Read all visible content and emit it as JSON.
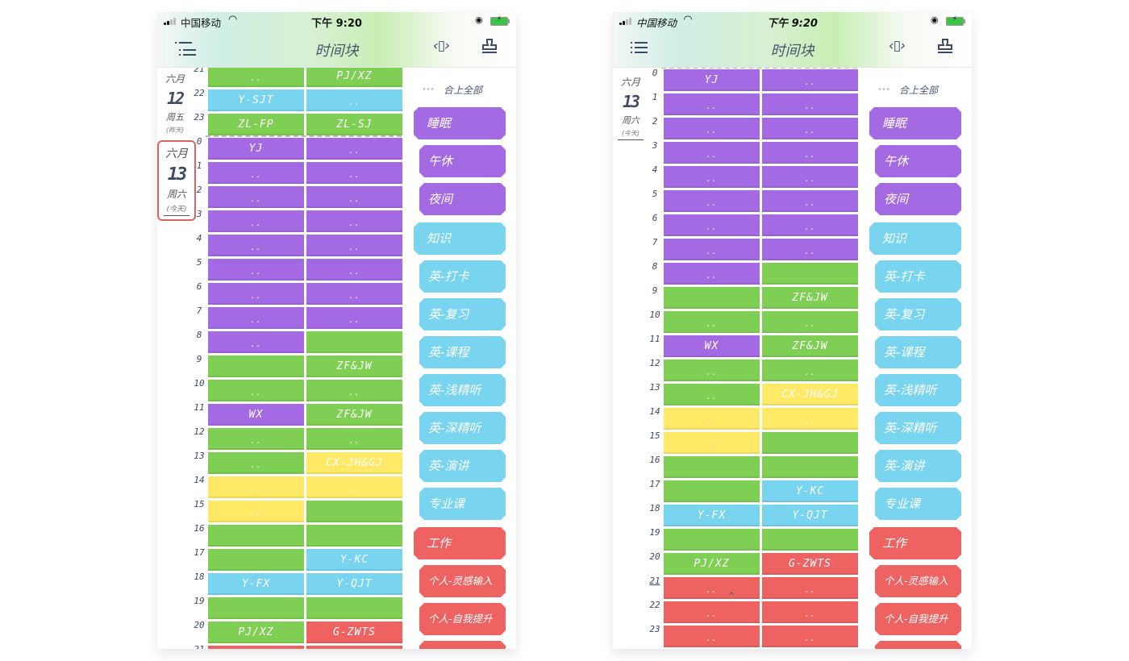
{
  "status_bar": {
    "carrier": "中国移动",
    "time": "下午 9:20",
    "wifi_icon": "wifi-icon",
    "battery_icon": "battery-charging-icon",
    "orientation_lock_icon": "orientation-lock-icon"
  },
  "nav": {
    "title": "时间块",
    "menu_icon": "list-menu-icon",
    "expand_icon": "expand-horizontal-icon",
    "stamp_icon": "stamp-icon"
  },
  "colors": {
    "purple": "#a36ae3",
    "green": "#80cf55",
    "blue": "#78d4ef",
    "yellow": "#ffe967",
    "red": "#ee6262",
    "highlight_border": "#e06262"
  },
  "side_panel": {
    "collapse_chevrons": "˅˅˅",
    "collapse_label": "合上全部",
    "categories": [
      {
        "label": "睡眠",
        "color": "purple",
        "level": "parent"
      },
      {
        "label": "午休",
        "color": "purple",
        "level": "child"
      },
      {
        "label": "夜间",
        "color": "purple",
        "level": "child"
      },
      {
        "label": "知识",
        "color": "blue",
        "level": "parent"
      },
      {
        "label": "英-打卡",
        "color": "blue",
        "level": "child"
      },
      {
        "label": "英-复习",
        "color": "blue",
        "level": "child"
      },
      {
        "label": "英-课程",
        "color": "blue",
        "level": "child"
      },
      {
        "label": "英-浅精听",
        "color": "blue",
        "level": "child"
      },
      {
        "label": "英-深精听",
        "color": "blue",
        "level": "child"
      },
      {
        "label": "英-演讲",
        "color": "blue",
        "level": "child"
      },
      {
        "label": "专业课",
        "color": "blue",
        "level": "child"
      },
      {
        "label": "工作",
        "color": "red",
        "level": "parent"
      },
      {
        "label": "个人-灵感输入",
        "color": "red",
        "level": "child"
      },
      {
        "label": "个人-自我提升",
        "color": "red",
        "level": "child"
      },
      {
        "label": "",
        "color": "red",
        "level": "child"
      }
    ]
  },
  "left_screen": {
    "yesterday": {
      "month": "六月",
      "day": "12",
      "weekday": "周五",
      "relative": "(昨天)"
    },
    "today": {
      "month": "六月",
      "day": "13",
      "weekday": "周六",
      "relative": "(今天)"
    },
    "prev_rows": [
      {
        "hour": "21",
        "cells": [
          {
            "text": "..",
            "color": "green"
          },
          {
            "text": "PJ/XZ",
            "color": "green"
          }
        ]
      },
      {
        "hour": "22",
        "cells": [
          {
            "text": "Y-SJT",
            "color": "blue"
          },
          {
            "text": "..",
            "color": "blue"
          }
        ]
      },
      {
        "hour": "23",
        "cells": [
          {
            "text": "ZL-FP",
            "color": "green"
          },
          {
            "text": "ZL-SJ",
            "color": "green"
          }
        ]
      }
    ],
    "rows": [
      {
        "hour": "0",
        "cells": [
          {
            "text": "YJ",
            "color": "purple"
          },
          {
            "text": "..",
            "color": "purple"
          }
        ]
      },
      {
        "hour": "1",
        "cells": [
          {
            "text": "..",
            "color": "purple"
          },
          {
            "text": "..",
            "color": "purple"
          }
        ]
      },
      {
        "hour": "2",
        "cells": [
          {
            "text": "..",
            "color": "purple"
          },
          {
            "text": "..",
            "color": "purple"
          }
        ]
      },
      {
        "hour": "3",
        "cells": [
          {
            "text": "..",
            "color": "purple"
          },
          {
            "text": "..",
            "color": "purple"
          }
        ]
      },
      {
        "hour": "4",
        "cells": [
          {
            "text": "..",
            "color": "purple"
          },
          {
            "text": "..",
            "color": "purple"
          }
        ]
      },
      {
        "hour": "5",
        "cells": [
          {
            "text": "..",
            "color": "purple"
          },
          {
            "text": "..",
            "color": "purple"
          }
        ]
      },
      {
        "hour": "6",
        "cells": [
          {
            "text": "..",
            "color": "purple"
          },
          {
            "text": "..",
            "color": "purple"
          }
        ]
      },
      {
        "hour": "7",
        "cells": [
          {
            "text": "..",
            "color": "purple"
          },
          {
            "text": "..",
            "color": "purple"
          }
        ]
      },
      {
        "hour": "8",
        "cells": [
          {
            "text": "..",
            "color": "purple"
          },
          {
            "text": "",
            "color": "green"
          }
        ]
      },
      {
        "hour": "9",
        "cells": [
          {
            "text": "",
            "color": "green"
          },
          {
            "text": "ZF&JW",
            "color": "green"
          }
        ]
      },
      {
        "hour": "10",
        "cells": [
          {
            "text": "..",
            "color": "green"
          },
          {
            "text": "..",
            "color": "green"
          }
        ]
      },
      {
        "hour": "11",
        "cells": [
          {
            "text": "WX",
            "color": "purple"
          },
          {
            "text": "ZF&JW",
            "color": "green"
          }
        ]
      },
      {
        "hour": "12",
        "cells": [
          {
            "text": "..",
            "color": "green"
          },
          {
            "text": "..",
            "color": "green"
          }
        ]
      },
      {
        "hour": "13",
        "cells": [
          {
            "text": "..",
            "color": "green"
          },
          {
            "text": "CX-JH&GJ",
            "color": "yellow"
          }
        ]
      },
      {
        "hour": "14",
        "cells": [
          {
            "text": "..",
            "color": "yellow"
          },
          {
            "text": "..",
            "color": "yellow"
          }
        ]
      },
      {
        "hour": "15",
        "cells": [
          {
            "text": "..",
            "color": "yellow"
          },
          {
            "text": "",
            "color": "green"
          }
        ]
      },
      {
        "hour": "16",
        "cells": [
          {
            "text": "",
            "color": "green"
          },
          {
            "text": "",
            "color": "green"
          }
        ]
      },
      {
        "hour": "17",
        "cells": [
          {
            "text": "",
            "color": "green"
          },
          {
            "text": "Y-KC",
            "color": "blue"
          }
        ]
      },
      {
        "hour": "18",
        "cells": [
          {
            "text": "Y-FX",
            "color": "blue"
          },
          {
            "text": "Y-QJT",
            "color": "blue"
          }
        ]
      },
      {
        "hour": "19",
        "cells": [
          {
            "text": "",
            "color": "green"
          },
          {
            "text": "",
            "color": "green"
          }
        ]
      },
      {
        "hour": "20",
        "cells": [
          {
            "text": "PJ/XZ",
            "color": "green"
          },
          {
            "text": "G-ZWTS",
            "color": "red"
          }
        ]
      },
      {
        "hour": "21",
        "cells": [
          {
            "text": "",
            "color": "red"
          },
          {
            "text": "",
            "color": "red"
          }
        ]
      }
    ]
  },
  "right_screen": {
    "today": {
      "month": "六月",
      "day": "13",
      "weekday": "周六",
      "relative": "(今天)"
    },
    "current_hour": "21",
    "rows": [
      {
        "hour": "0",
        "cells": [
          {
            "text": "YJ",
            "color": "purple"
          },
          {
            "text": "..",
            "color": "purple"
          }
        ]
      },
      {
        "hour": "1",
        "cells": [
          {
            "text": "..",
            "color": "purple"
          },
          {
            "text": "..",
            "color": "purple"
          }
        ]
      },
      {
        "hour": "2",
        "cells": [
          {
            "text": "..",
            "color": "purple"
          },
          {
            "text": "..",
            "color": "purple"
          }
        ]
      },
      {
        "hour": "3",
        "cells": [
          {
            "text": "..",
            "color": "purple"
          },
          {
            "text": "..",
            "color": "purple"
          }
        ]
      },
      {
        "hour": "4",
        "cells": [
          {
            "text": "..",
            "color": "purple"
          },
          {
            "text": "..",
            "color": "purple"
          }
        ]
      },
      {
        "hour": "5",
        "cells": [
          {
            "text": "..",
            "color": "purple"
          },
          {
            "text": "..",
            "color": "purple"
          }
        ]
      },
      {
        "hour": "6",
        "cells": [
          {
            "text": "..",
            "color": "purple"
          },
          {
            "text": "..",
            "color": "purple"
          }
        ]
      },
      {
        "hour": "7",
        "cells": [
          {
            "text": "..",
            "color": "purple"
          },
          {
            "text": "..",
            "color": "purple"
          }
        ]
      },
      {
        "hour": "8",
        "cells": [
          {
            "text": "..",
            "color": "purple"
          },
          {
            "text": "",
            "color": "green"
          }
        ]
      },
      {
        "hour": "9",
        "cells": [
          {
            "text": "",
            "color": "green"
          },
          {
            "text": "ZF&JW",
            "color": "green"
          }
        ]
      },
      {
        "hour": "10",
        "cells": [
          {
            "text": "..",
            "color": "green"
          },
          {
            "text": "..",
            "color": "green"
          }
        ]
      },
      {
        "hour": "11",
        "cells": [
          {
            "text": "WX",
            "color": "purple"
          },
          {
            "text": "ZF&JW",
            "color": "green"
          }
        ]
      },
      {
        "hour": "12",
        "cells": [
          {
            "text": "..",
            "color": "green"
          },
          {
            "text": "..",
            "color": "green"
          }
        ]
      },
      {
        "hour": "13",
        "cells": [
          {
            "text": "..",
            "color": "green"
          },
          {
            "text": "CX-JH&GJ",
            "color": "yellow"
          }
        ]
      },
      {
        "hour": "14",
        "cells": [
          {
            "text": "..",
            "color": "yellow"
          },
          {
            "text": "..",
            "color": "yellow"
          }
        ]
      },
      {
        "hour": "15",
        "cells": [
          {
            "text": "..",
            "color": "yellow"
          },
          {
            "text": "",
            "color": "green"
          }
        ]
      },
      {
        "hour": "16",
        "cells": [
          {
            "text": "",
            "color": "green"
          },
          {
            "text": "",
            "color": "green"
          }
        ]
      },
      {
        "hour": "17",
        "cells": [
          {
            "text": "",
            "color": "green"
          },
          {
            "text": "Y-KC",
            "color": "blue"
          }
        ]
      },
      {
        "hour": "18",
        "cells": [
          {
            "text": "Y-FX",
            "color": "blue"
          },
          {
            "text": "Y-QJT",
            "color": "blue"
          }
        ]
      },
      {
        "hour": "19",
        "cells": [
          {
            "text": "",
            "color": "green"
          },
          {
            "text": "",
            "color": "green"
          }
        ]
      },
      {
        "hour": "20",
        "cells": [
          {
            "text": "PJ/XZ",
            "color": "green"
          },
          {
            "text": "G-ZWTS",
            "color": "red"
          }
        ]
      },
      {
        "hour": "21",
        "cells": [
          {
            "text": "..",
            "color": "red"
          },
          {
            "text": "..",
            "color": "red"
          }
        ]
      },
      {
        "hour": "22",
        "cells": [
          {
            "text": "..",
            "color": "red"
          },
          {
            "text": "..",
            "color": "red"
          }
        ]
      },
      {
        "hour": "23",
        "cells": [
          {
            "text": "..",
            "color": "red"
          },
          {
            "text": "..",
            "color": "red"
          }
        ]
      }
    ]
  }
}
